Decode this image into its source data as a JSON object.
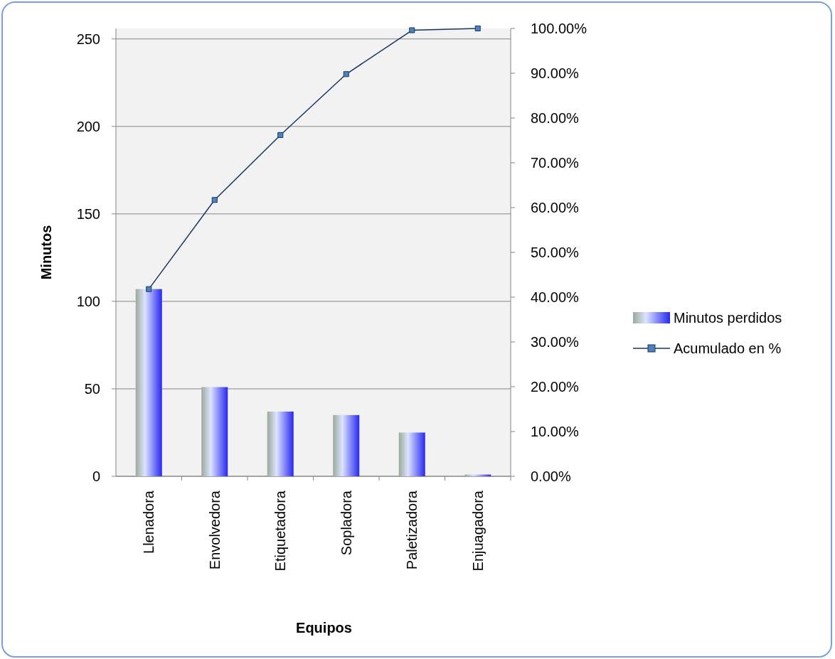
{
  "chart_data": {
    "type": "bar",
    "xlabel": "Equipos",
    "ylabel": "Minutos",
    "categories": [
      "Llenadora",
      "Envolvedora",
      "Etiquetadora",
      "Sopladora",
      "Paletizadora",
      "Enjuagadora"
    ],
    "series": [
      {
        "name": "Minutos perdidos",
        "color": "#2828f0",
        "values": [
          107,
          51,
          37,
          35,
          25,
          1
        ]
      },
      {
        "name": "Acumulado en %",
        "type": "line",
        "axis": "y2",
        "color": "#17375e",
        "values": [
          41.8,
          61.7,
          76.2,
          89.8,
          99.6,
          100
        ]
      }
    ],
    "ylim": [
      0,
      256
    ],
    "yticks": [
      0,
      50,
      100,
      150,
      200,
      250
    ],
    "y2lim": [
      0,
      100
    ],
    "y2ticks": [
      {
        "value": 0,
        "label": "0.00%"
      },
      {
        "value": 10,
        "label": "10.00%"
      },
      {
        "value": 20,
        "label": "20.00%"
      },
      {
        "value": 30,
        "label": "30.00%"
      },
      {
        "value": 40,
        "label": "40.00%"
      },
      {
        "value": 50,
        "label": "50.00%"
      },
      {
        "value": 60,
        "label": "60.00%"
      },
      {
        "value": 70,
        "label": "70.00%"
      },
      {
        "value": 80,
        "label": "80.00%"
      },
      {
        "value": 90,
        "label": "90.00%"
      },
      {
        "value": 100,
        "label": "100.00%"
      }
    ],
    "grid": "y",
    "legend": "right",
    "marker": "square"
  }
}
